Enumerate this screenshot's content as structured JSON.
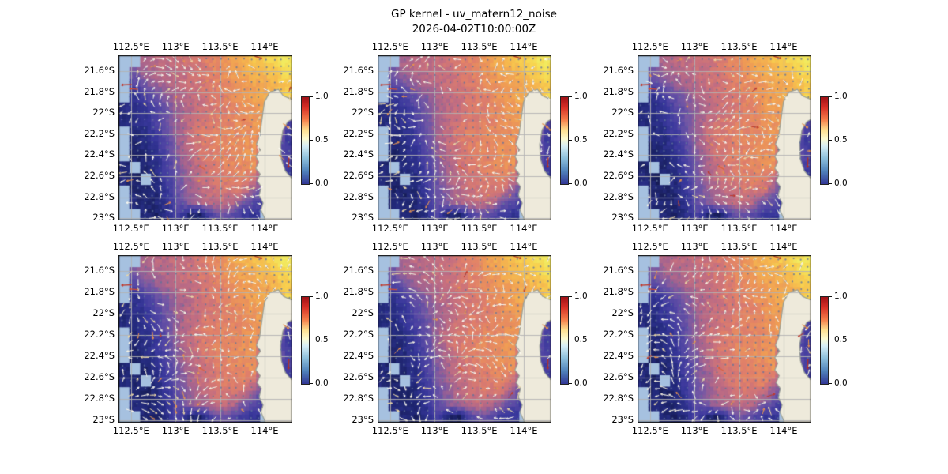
{
  "chart_data": {
    "type": "heatmap",
    "title": "GP kernel - uv_matern12_noise",
    "subtitle": "2026-04-02T10:00:00Z",
    "layout": {
      "rows": 2,
      "cols": 3,
      "panels": 6,
      "grid_on": true,
      "colorbar_per_panel": true
    },
    "geo": {
      "lon_min": 112.36,
      "lon_max": 114.31,
      "lat_south_min": 21.45,
      "lat_south_max": 23.02
    },
    "x_ticks": [
      {
        "value": 112.5,
        "label": "112.5°E"
      },
      {
        "value": 113.0,
        "label": "113°E"
      },
      {
        "value": 113.5,
        "label": "113.5°E"
      },
      {
        "value": 114.0,
        "label": "114°E"
      }
    ],
    "y_ticks": [
      {
        "value": 21.6,
        "label": "21.6°S"
      },
      {
        "value": 21.8,
        "label": "21.8°S"
      },
      {
        "value": 22.0,
        "label": "22°S"
      },
      {
        "value": 22.2,
        "label": "22.2°S"
      },
      {
        "value": 22.4,
        "label": "22.4°S"
      },
      {
        "value": 22.6,
        "label": "22.6°S"
      },
      {
        "value": 22.8,
        "label": "22.8°S"
      },
      {
        "value": 23.0,
        "label": "23°S"
      }
    ],
    "colorbar": {
      "vmin": 0.0,
      "vmax": 1.0,
      "ticks": [
        {
          "value": 1.0,
          "label": "1.0"
        },
        {
          "value": 0.5,
          "label": "0.5"
        },
        {
          "value": 0.0,
          "label": "0.0"
        }
      ],
      "stops": [
        [
          0.0,
          "#313695"
        ],
        [
          0.15,
          "#5083bb"
        ],
        [
          0.3,
          "#8fc1dc"
        ],
        [
          0.44,
          "#d8eef5"
        ],
        [
          0.52,
          "#fdfbd0"
        ],
        [
          0.62,
          "#fee090"
        ],
        [
          0.74,
          "#f57d4a"
        ],
        [
          0.88,
          "#d73027"
        ],
        [
          1.0,
          "#a01217"
        ]
      ]
    },
    "heat_stops": [
      [
        0.0,
        "#14194f"
      ],
      [
        0.1,
        "#232a7c"
      ],
      [
        0.2,
        "#38379b"
      ],
      [
        0.3,
        "#5246a4"
      ],
      [
        0.4,
        "#7357a5"
      ],
      [
        0.5,
        "#a4638f"
      ],
      [
        0.58,
        "#c66f7f"
      ],
      [
        0.66,
        "#e07f6a"
      ],
      [
        0.75,
        "#ef9a55"
      ],
      [
        0.85,
        "#f6b84e"
      ],
      [
        0.93,
        "#f8d44f"
      ],
      [
        1.0,
        "#f2ea5f"
      ]
    ],
    "heat_values": [
      [
        null,
        null,
        0.52,
        0.55,
        0.56,
        0.58,
        0.6,
        0.63,
        0.68,
        0.72,
        0.78,
        0.83,
        0.87,
        0.91,
        0.96,
        1.0
      ],
      [
        null,
        0.4,
        0.5,
        0.53,
        0.55,
        0.57,
        0.59,
        0.62,
        0.66,
        0.7,
        0.75,
        0.8,
        0.83,
        0.86,
        0.9,
        0.96
      ],
      [
        null,
        0.3,
        0.4,
        0.47,
        0.52,
        0.55,
        0.58,
        0.61,
        0.64,
        0.68,
        0.72,
        0.75,
        0.78,
        0.8,
        0.85,
        0.9
      ],
      [
        null,
        0.16,
        0.26,
        0.36,
        0.44,
        0.52,
        0.56,
        0.6,
        0.63,
        0.66,
        0.7,
        0.74,
        0.78,
        0.82,
        0.8,
        0.93
      ],
      [
        0.12,
        0.14,
        0.2,
        0.3,
        0.4,
        0.49,
        0.55,
        0.59,
        0.62,
        0.65,
        0.68,
        0.72,
        0.75,
        0.78,
        0.82,
        0.6
      ],
      [
        0.1,
        0.12,
        0.18,
        0.28,
        0.38,
        0.48,
        0.56,
        0.61,
        0.64,
        0.66,
        0.68,
        0.71,
        0.74,
        0.76,
        0.7,
        0.3
      ],
      [
        null,
        0.1,
        0.14,
        0.24,
        0.36,
        0.5,
        0.58,
        0.63,
        0.66,
        0.68,
        0.69,
        0.71,
        0.73,
        0.75,
        0.65,
        0.25
      ],
      [
        null,
        0.08,
        0.12,
        0.2,
        0.33,
        0.47,
        0.57,
        0.63,
        0.66,
        0.68,
        0.7,
        0.72,
        0.74,
        0.5,
        0.45,
        0.22
      ],
      [
        null,
        0.06,
        0.1,
        0.17,
        0.29,
        0.44,
        0.54,
        0.61,
        0.65,
        0.68,
        0.7,
        0.72,
        0.73,
        0.45,
        0.4,
        0.28
      ],
      [
        0.08,
        null,
        0.08,
        0.14,
        0.27,
        0.41,
        0.51,
        0.59,
        0.63,
        0.66,
        0.68,
        0.7,
        0.72,
        0.42,
        0.35,
        0.25
      ],
      [
        0.1,
        0.05,
        null,
        0.11,
        0.24,
        0.39,
        0.49,
        0.57,
        0.61,
        0.64,
        0.66,
        0.68,
        0.6,
        0.4,
        0.3,
        0.2
      ],
      [
        null,
        0.07,
        0.05,
        0.09,
        0.21,
        0.37,
        0.47,
        0.54,
        0.59,
        0.62,
        0.62,
        0.6,
        0.45,
        0.3,
        null,
        null
      ],
      [
        null,
        0.1,
        0.07,
        0.09,
        0.18,
        0.33,
        0.43,
        0.51,
        0.55,
        0.57,
        0.54,
        0.4,
        0.3,
        0.22,
        null,
        null
      ],
      [
        null,
        null,
        0.09,
        0.05,
        0.14,
        0.28,
        0.08,
        0.05,
        0.28,
        0.38,
        0.32,
        0.22,
        0.18,
        null,
        null,
        null
      ]
    ],
    "land_polygon": [
      [
        114.155,
        21.775
      ],
      [
        114.21,
        21.835
      ],
      [
        114.27,
        21.858
      ],
      [
        114.315,
        21.872
      ],
      [
        114.315,
        22.055
      ],
      [
        114.26,
        22.08
      ],
      [
        114.205,
        22.16
      ],
      [
        114.178,
        22.3
      ],
      [
        114.188,
        22.44
      ],
      [
        114.232,
        22.55
      ],
      [
        114.315,
        22.63
      ],
      [
        114.315,
        23.025
      ],
      [
        114.01,
        23.025
      ],
      [
        113.995,
        22.99
      ],
      [
        113.958,
        22.92
      ],
      [
        113.983,
        22.855
      ],
      [
        113.938,
        22.78
      ],
      [
        113.963,
        22.7
      ],
      [
        113.915,
        22.645
      ],
      [
        113.95,
        22.58
      ],
      [
        113.9,
        22.525
      ],
      [
        113.933,
        22.465
      ],
      [
        113.9,
        22.41
      ],
      [
        113.953,
        22.35
      ],
      [
        113.908,
        22.295
      ],
      [
        113.943,
        22.22
      ],
      [
        113.962,
        22.11
      ],
      [
        113.98,
        22.0
      ],
      [
        113.997,
        21.895
      ],
      [
        114.058,
        21.8
      ]
    ],
    "colors": {
      "ocean_background": "#a6c1e0",
      "land": "#eeeadb",
      "coastline": "#9aa096",
      "gridline": "#b3b3b3",
      "axes_border": "#111111",
      "arrow_dot": "#60739a",
      "arrow_white": "#f8f3e4",
      "arrow_orange": "#e8914f",
      "arrow_red": "#c0392b"
    }
  }
}
